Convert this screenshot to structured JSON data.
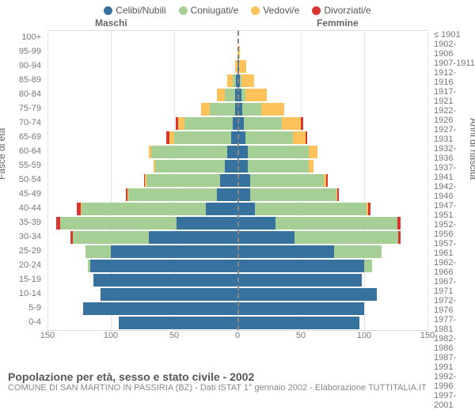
{
  "chart": {
    "type": "population-pyramid",
    "title": "Popolazione per età, sesso e stato civile - 2002",
    "subtitle": "COMUNE DI SAN MARTINO IN PASSIRIA (BZ) - Dati ISTAT 1° gennaio 2002 - Elaborazione TUTTITALIA.IT",
    "gender_labels": {
      "male": "Maschi",
      "female": "Femmine"
    },
    "y_left_title": "Fasce di età",
    "y_right_title": "Anni di nascita",
    "x_axis": {
      "max": 150,
      "ticks_left": [
        150,
        100,
        50,
        0
      ],
      "ticks_right": [
        50,
        100,
        150
      ]
    },
    "colors": {
      "single": "#37729f",
      "married": "#a5cf95",
      "widowed": "#fdc35a",
      "divorced": "#d9362f",
      "grid": "#e5e5e5",
      "centerline": "#888888",
      "background": "#ffffff"
    },
    "legend": [
      {
        "key": "single",
        "label": "Celibi/Nubili"
      },
      {
        "key": "married",
        "label": "Coniugati/e"
      },
      {
        "key": "widowed",
        "label": "Vedovi/e"
      },
      {
        "key": "divorced",
        "label": "Divorziati/e"
      }
    ],
    "age_groups": [
      "100+",
      "95-99",
      "90-94",
      "85-89",
      "80-84",
      "75-79",
      "70-74",
      "65-69",
      "60-64",
      "55-59",
      "50-54",
      "45-49",
      "40-44",
      "35-39",
      "30-34",
      "25-29",
      "20-24",
      "15-19",
      "10-14",
      "5-9",
      "0-4"
    ],
    "birth_years": [
      "≤ 1901",
      "1902-1906",
      "1907-1911",
      "1912-1916",
      "1917-1921",
      "1922-1926",
      "1927-1931",
      "1932-1936",
      "1937-1941",
      "1942-1946",
      "1947-1951",
      "1952-1956",
      "1957-1961",
      "1962-1966",
      "1967-1971",
      "1972-1976",
      "1977-1981",
      "1982-1986",
      "1987-1991",
      "1992-1996",
      "1997-2001"
    ],
    "male": [
      {
        "single": 0,
        "married": 0,
        "widowed": 0,
        "divorced": 0
      },
      {
        "single": 0,
        "married": 0,
        "widowed": 0,
        "divorced": 0
      },
      {
        "single": 0,
        "married": 0,
        "widowed": 2,
        "divorced": 0
      },
      {
        "single": 1,
        "married": 3,
        "widowed": 4,
        "divorced": 0
      },
      {
        "single": 2,
        "married": 8,
        "widowed": 6,
        "divorced": 0
      },
      {
        "single": 2,
        "married": 20,
        "widowed": 7,
        "divorced": 0
      },
      {
        "single": 4,
        "married": 38,
        "widowed": 5,
        "divorced": 2
      },
      {
        "single": 5,
        "married": 45,
        "widowed": 4,
        "divorced": 2
      },
      {
        "single": 8,
        "married": 60,
        "widowed": 2,
        "divorced": 0
      },
      {
        "single": 10,
        "married": 55,
        "widowed": 1,
        "divorced": 0
      },
      {
        "single": 14,
        "married": 58,
        "widowed": 1,
        "divorced": 1
      },
      {
        "single": 16,
        "married": 70,
        "widowed": 1,
        "divorced": 1
      },
      {
        "single": 25,
        "married": 98,
        "widowed": 1,
        "divorced": 3
      },
      {
        "single": 48,
        "married": 92,
        "widowed": 0,
        "divorced": 3
      },
      {
        "single": 70,
        "married": 60,
        "widowed": 0,
        "divorced": 2
      },
      {
        "single": 100,
        "married": 20,
        "widowed": 0,
        "divorced": 0
      },
      {
        "single": 116,
        "married": 2,
        "widowed": 0,
        "divorced": 0
      },
      {
        "single": 114,
        "married": 0,
        "widowed": 0,
        "divorced": 0
      },
      {
        "single": 108,
        "married": 0,
        "widowed": 0,
        "divorced": 0
      },
      {
        "single": 122,
        "married": 0,
        "widowed": 0,
        "divorced": 0
      },
      {
        "single": 94,
        "married": 0,
        "widowed": 0,
        "divorced": 0
      }
    ],
    "female": [
      {
        "single": 0,
        "married": 0,
        "widowed": 0,
        "divorced": 0
      },
      {
        "single": 0,
        "married": 0,
        "widowed": 2,
        "divorced": 0
      },
      {
        "single": 1,
        "married": 0,
        "widowed": 6,
        "divorced": 0
      },
      {
        "single": 2,
        "married": 1,
        "widowed": 10,
        "divorced": 0
      },
      {
        "single": 3,
        "married": 3,
        "widowed": 17,
        "divorced": 0
      },
      {
        "single": 4,
        "married": 15,
        "widowed": 18,
        "divorced": 0
      },
      {
        "single": 5,
        "married": 30,
        "widowed": 15,
        "divorced": 2
      },
      {
        "single": 6,
        "married": 38,
        "widowed": 10,
        "divorced": 1
      },
      {
        "single": 8,
        "married": 48,
        "widowed": 7,
        "divorced": 0
      },
      {
        "single": 8,
        "married": 48,
        "widowed": 4,
        "divorced": 0
      },
      {
        "single": 10,
        "married": 58,
        "widowed": 2,
        "divorced": 1
      },
      {
        "single": 10,
        "married": 68,
        "widowed": 1,
        "divorced": 1
      },
      {
        "single": 14,
        "married": 88,
        "widowed": 1,
        "divorced": 2
      },
      {
        "single": 30,
        "married": 96,
        "widowed": 0,
        "divorced": 3
      },
      {
        "single": 45,
        "married": 82,
        "widowed": 0,
        "divorced": 2
      },
      {
        "single": 76,
        "married": 38,
        "widowed": 0,
        "divorced": 0
      },
      {
        "single": 100,
        "married": 6,
        "widowed": 0,
        "divorced": 0
      },
      {
        "single": 98,
        "married": 0,
        "widowed": 0,
        "divorced": 0
      },
      {
        "single": 110,
        "married": 0,
        "widowed": 0,
        "divorced": 0
      },
      {
        "single": 100,
        "married": 0,
        "widowed": 0,
        "divorced": 0
      },
      {
        "single": 96,
        "married": 0,
        "widowed": 0,
        "divorced": 0
      }
    ]
  }
}
